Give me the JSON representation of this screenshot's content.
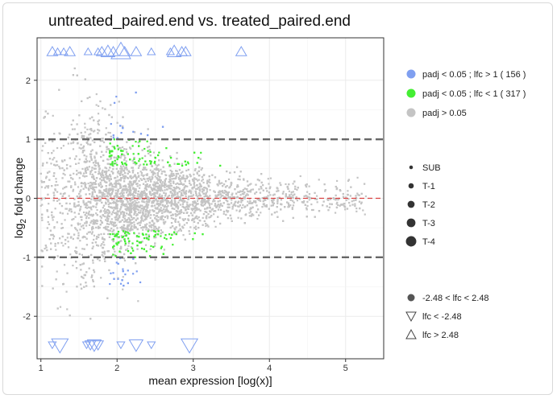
{
  "chart_data": {
    "type": "scatter",
    "title": "untreated_paired.end vs. treated_paired.end",
    "xlabel": "mean expression [log(x)]",
    "ylabel_main": "log",
    "ylabel_sub": "2",
    "ylabel_rest": " fold change",
    "xlim": [
      0.95,
      5.5
    ],
    "ylim": [
      -2.72,
      2.72
    ],
    "xticks": [
      1,
      2,
      3,
      4,
      5
    ],
    "yticks": [
      -2,
      -1,
      0,
      1,
      2
    ],
    "grid": true,
    "threshold_lines": [
      -1,
      1
    ],
    "zero_line": 0,
    "lfc_cap": 2.48,
    "colors": {
      "up": "#7f9ff0",
      "down": "#44ee33",
      "ns": "#c4c4c4",
      "threshold": "#666666",
      "zero": "#d94040"
    },
    "legend_color": {
      "placement": "right",
      "items": [
        {
          "key": "up",
          "label": "padj < 0.05 ; lfc > 1  ( 156 )"
        },
        {
          "key": "down",
          "label": "padj < 0.05 ; lfc < 1  ( 317 )"
        },
        {
          "key": "ns",
          "label": "padj > 0.05"
        }
      ]
    },
    "legend_size": {
      "items": [
        {
          "label": "SUB",
          "size": 1
        },
        {
          "label": "T-1",
          "size": 2
        },
        {
          "label": "T-2",
          "size": 3
        },
        {
          "label": "T-3",
          "size": 4
        },
        {
          "label": "T-4",
          "size": 5
        }
      ]
    },
    "legend_shape": {
      "items": [
        {
          "shape": "circle",
          "label": "-2.48 < lfc < 2.48"
        },
        {
          "shape": "triangle-down",
          "label": "lfc <  -2.48"
        },
        {
          "shape": "triangle-up",
          "label": "lfc >  2.48"
        }
      ]
    },
    "series": [
      {
        "key": "capped-up",
        "points": [
          [
            1.15,
            2.48,
            2
          ],
          [
            1.22,
            2.48,
            1
          ],
          [
            1.3,
            2.48,
            1
          ],
          [
            1.38,
            2.48,
            2
          ],
          [
            1.62,
            2.48,
            1
          ],
          [
            1.75,
            2.48,
            1
          ],
          [
            1.8,
            2.48,
            2
          ],
          [
            1.88,
            2.48,
            3
          ],
          [
            1.95,
            2.48,
            2
          ],
          [
            2.05,
            2.48,
            5
          ],
          [
            2.1,
            2.48,
            2
          ],
          [
            2.25,
            2.48,
            2
          ],
          [
            2.45,
            2.48,
            1
          ],
          [
            2.7,
            2.48,
            1
          ],
          [
            2.75,
            2.48,
            3
          ],
          [
            2.85,
            2.48,
            2
          ],
          [
            2.9,
            2.48,
            2
          ],
          [
            3.63,
            2.48,
            2
          ]
        ]
      },
      {
        "key": "capped-down",
        "points": [
          [
            1.15,
            -2.48,
            1
          ],
          [
            1.25,
            -2.48,
            4
          ],
          [
            1.6,
            -2.48,
            1
          ],
          [
            1.65,
            -2.48,
            2
          ],
          [
            1.7,
            -2.48,
            3
          ],
          [
            1.75,
            -2.48,
            2
          ],
          [
            2.05,
            -2.48,
            1
          ],
          [
            2.25,
            -2.48,
            3
          ],
          [
            2.45,
            -2.48,
            1
          ],
          [
            2.95,
            -2.48,
            4
          ]
        ]
      }
    ]
  }
}
